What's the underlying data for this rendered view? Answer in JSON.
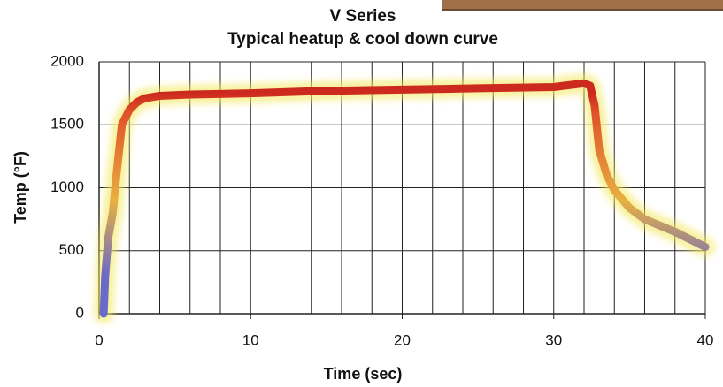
{
  "chart_data": {
    "type": "line",
    "title": "V Series",
    "subtitle": "Typical heatup & cool down curve",
    "x_label": "Time (sec)",
    "y_label": "Temp (°F)",
    "x": [
      0.3,
      0.4,
      0.6,
      0.9,
      1.1,
      1.5,
      2,
      2.5,
      3,
      4,
      6,
      10,
      15,
      20,
      25,
      30,
      31,
      32,
      32.4,
      32.7,
      33,
      33.5,
      34,
      35,
      36,
      38,
      40
    ],
    "series": [
      {
        "name": "Temp",
        "values": [
          0,
          300,
          600,
          800,
          1050,
          1500,
          1620,
          1680,
          1710,
          1730,
          1740,
          1750,
          1770,
          1780,
          1790,
          1800,
          1815,
          1830,
          1810,
          1650,
          1300,
          1100,
          980,
          840,
          750,
          650,
          530
        ]
      }
    ],
    "color_scale": [
      {
        "value": 300,
        "color": "#6a6ac8"
      },
      {
        "value": 900,
        "color": "#e8b040"
      },
      {
        "value": 1600,
        "color": "#e0502a"
      },
      {
        "value": 1750,
        "color": "#cc2a1e"
      }
    ],
    "glow_color": "#f4e85a",
    "xlim": [
      0,
      40
    ],
    "ylim": [
      0,
      2000
    ],
    "xticks": [
      0,
      10,
      20,
      30,
      40
    ],
    "yticks": [
      0,
      500,
      1000,
      1500,
      2000
    ],
    "x_grid": [
      2,
      4,
      6,
      8,
      10,
      12,
      14,
      16,
      18,
      20,
      22,
      24,
      26,
      28,
      30,
      32,
      34,
      36,
      38,
      40
    ],
    "grid": true
  }
}
